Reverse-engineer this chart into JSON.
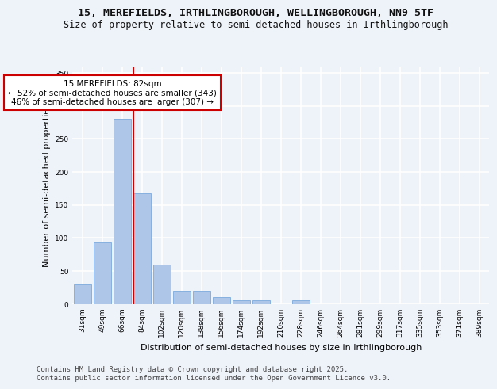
{
  "title_line1": "15, MEREFIELDS, IRTHLINGBOROUGH, WELLINGBOROUGH, NN9 5TF",
  "title_line2": "Size of property relative to semi-detached houses in Irthlingborough",
  "xlabel": "Distribution of semi-detached houses by size in Irthlingborough",
  "ylabel": "Number of semi-detached properties",
  "categories": [
    "31sqm",
    "49sqm",
    "66sqm",
    "84sqm",
    "102sqm",
    "120sqm",
    "138sqm",
    "156sqm",
    "174sqm",
    "192sqm",
    "210sqm",
    "228sqm",
    "246sqm",
    "264sqm",
    "281sqm",
    "299sqm",
    "317sqm",
    "335sqm",
    "353sqm",
    "371sqm",
    "389sqm"
  ],
  "values": [
    30,
    93,
    280,
    168,
    60,
    20,
    20,
    10,
    5,
    5,
    0,
    5,
    0,
    0,
    0,
    0,
    0,
    0,
    0,
    0,
    0
  ],
  "bar_color": "#aec6e8",
  "bar_edge_color": "#6a9fd8",
  "vline_color": "#cc0000",
  "annotation_text": "15 MEREFIELDS: 82sqm\n← 52% of semi-detached houses are smaller (343)\n46% of semi-detached houses are larger (307) →",
  "annotation_box_color": "#ffffff",
  "annotation_box_edge": "#cc0000",
  "ylim": [
    0,
    360
  ],
  "yticks": [
    0,
    50,
    100,
    150,
    200,
    250,
    300,
    350
  ],
  "background_color": "#eef2f9",
  "grid_color": "#ffffff",
  "footer_text": "Contains HM Land Registry data © Crown copyright and database right 2025.\nContains public sector information licensed under the Open Government Licence v3.0.",
  "title_fontsize": 9.5,
  "subtitle_fontsize": 8.5,
  "xlabel_fontsize": 8,
  "ylabel_fontsize": 8,
  "tick_fontsize": 6.5,
  "annotation_fontsize": 7.5,
  "footer_fontsize": 6.5
}
